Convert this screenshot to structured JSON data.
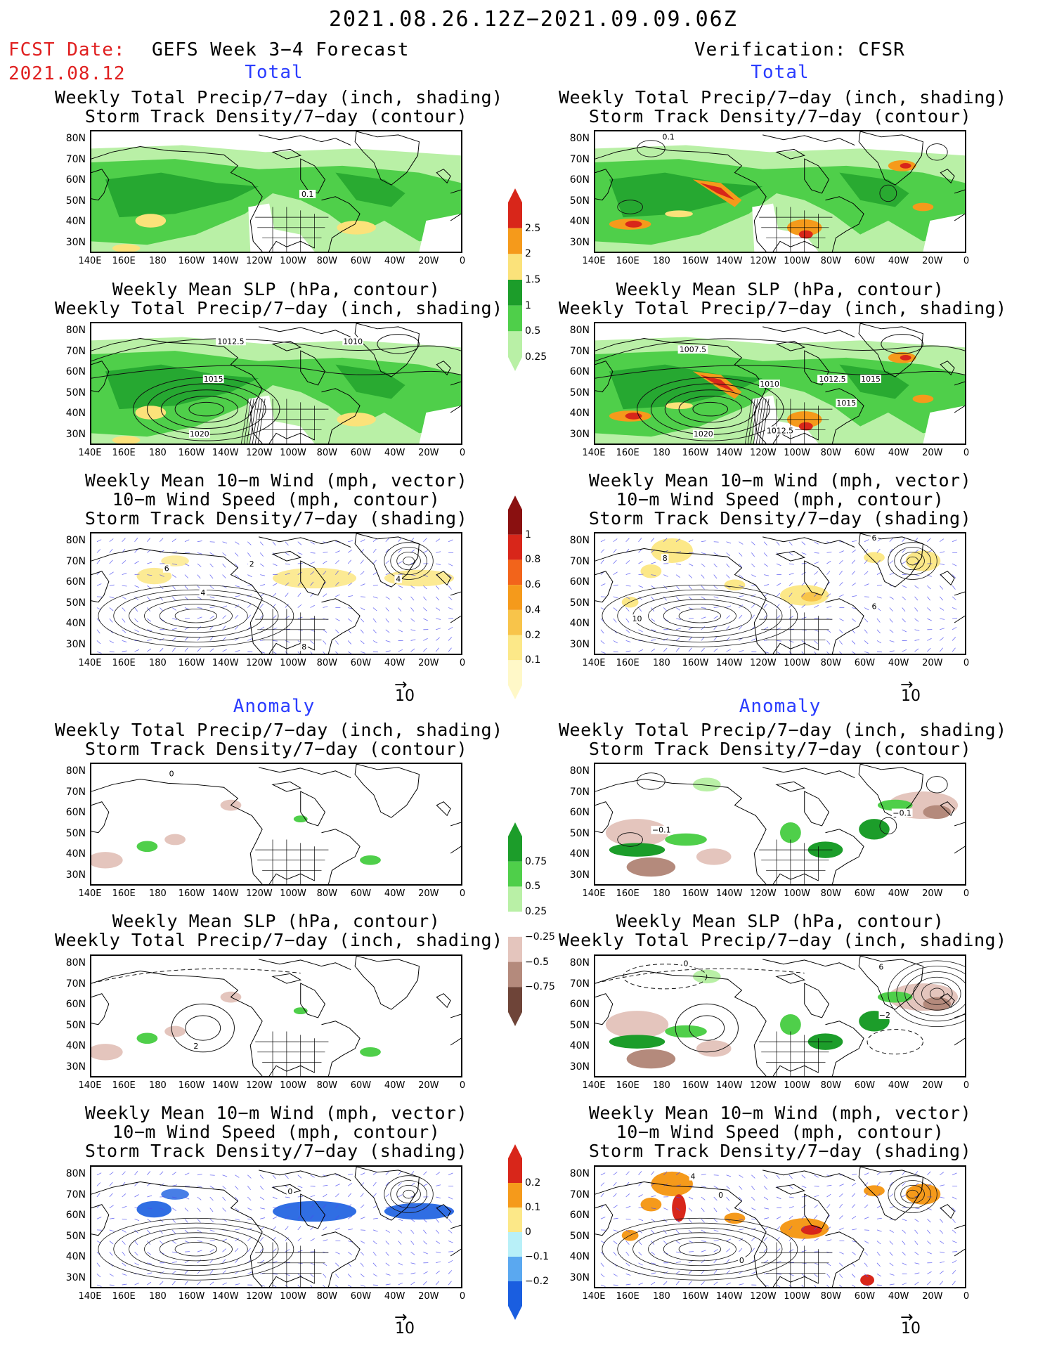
{
  "header": {
    "title": "2021.08.26.12Z−2021.09.09.06Z",
    "fcst_label": "FCST Date:",
    "fcst_date": "2021.08.12",
    "left_heading": "GEFS Week 3−4 Forecast",
    "right_heading": "Verification: CFSR"
  },
  "sections": {
    "total": "Total",
    "anomaly": "Anomaly"
  },
  "panel_titles": {
    "precip_storm": [
      "Weekly Total Precip/7−day (inch, shading)",
      "Storm Track Density/7−day (contour)"
    ],
    "slp_precip": [
      "Weekly Mean SLP (hPa, contour)",
      "Weekly Total Precip/7−day (inch, shading)"
    ],
    "wind_storm": [
      "Weekly Mean 10−m Wind (mph, vector)",
      "10−m Wind Speed (mph, contour)",
      "Storm Track Density/7−day (shading)"
    ]
  },
  "axes": {
    "lat_labels": [
      "80N",
      "70N",
      "60N",
      "50N",
      "40N",
      "30N"
    ],
    "lon_labels": [
      "140E",
      "160E",
      "180",
      "160W",
      "140W",
      "120W",
      "100W",
      "80W",
      "60W",
      "40W",
      "20W",
      "0"
    ]
  },
  "vector_scale": "10",
  "colorbars": {
    "total_precip": {
      "labels": [
        "2.5",
        "2",
        "1.5",
        "1",
        "0.5",
        "0.25"
      ],
      "colors": [
        "#d8261a",
        "#f59a1b",
        "#fbe27a",
        "#1c9d2a",
        "#4fcf4a",
        "#b9f0a6"
      ]
    },
    "total_storm": {
      "labels": [
        "1",
        "0.8",
        "0.6",
        "0.4",
        "0.2",
        "0.1"
      ],
      "colors": [
        "#8a1010",
        "#d8261a",
        "#f2641b",
        "#f59a1b",
        "#f8c44a",
        "#fce888",
        "#fff8c8"
      ]
    },
    "anom_precip": {
      "labels": [
        "0.75",
        "0.5",
        "0.25",
        "−0.25",
        "−0.5",
        "−0.75"
      ],
      "colors": [
        "#1c9d2a",
        "#4fcf4a",
        "#b9f0a6",
        "#ffffff",
        "#e4c5bd",
        "#b48a7c",
        "#6e4438"
      ]
    },
    "anom_storm": {
      "labels": [
        "0.2",
        "0.1",
        "0",
        "−0.1",
        "−0.2"
      ],
      "colors": [
        "#d8261a",
        "#f59a1b",
        "#fce888",
        "#b8f0f8",
        "#5aa8f0",
        "#1a5ee0"
      ]
    }
  },
  "map_colors": {
    "land_outline": "#000000",
    "wind_vector": "#4a4af0"
  },
  "contour_labels": {
    "L_precip": [
      "0.1"
    ],
    "R_precip": [
      "0.1"
    ],
    "L_slp": [
      "1012.5",
      "1010",
      "1015",
      "1020"
    ],
    "R_slp": [
      "1007.5",
      "1010",
      "1012.5",
      "1015",
      "1015",
      "1012.5",
      "1020"
    ],
    "L_wind": [
      "2",
      "6",
      "4",
      "8",
      "4"
    ],
    "R_wind": [
      "6",
      "8",
      "10",
      "6"
    ],
    "L_aprecip": [
      "0"
    ],
    "R_aprecip": [
      "−0.1",
      "−0.1"
    ],
    "L_aslp": [
      "2"
    ],
    "R_aslp": [
      "0",
      "6",
      "−2"
    ],
    "L_awind": [
      "0"
    ],
    "R_awind": [
      "4",
      "0",
      "0"
    ]
  }
}
